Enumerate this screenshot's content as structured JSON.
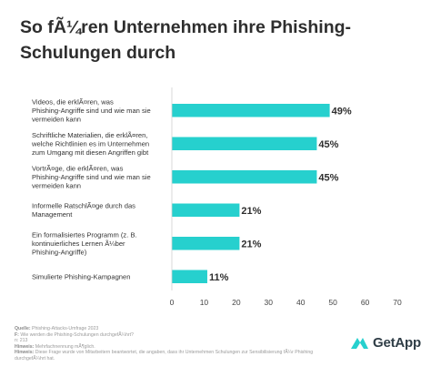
{
  "title": "So fÃ¼ren Unternehmen ihre Phishing-Schulungen durch",
  "chart_data": {
    "type": "bar",
    "orientation": "horizontal",
    "categories": [
      [
        "Videos, die erklÃ¤ren, was",
        "Phishing-Angriffe sind und wie man sie",
        "vermeiden kann"
      ],
      [
        "Schriftliche Materialien, die erklÃ¤ren,",
        "welche Richtlinien es im Unternehmen",
        "zum Umgang mit diesen Angriffen gibt"
      ],
      [
        "VortrÃ¤ge, die erklÃ¤ren, was",
        "Phishing-Angriffe sind und wie man sie",
        "vermeiden kann"
      ],
      [
        "Informelle RatschlÃ¤ge durch das",
        "Management"
      ],
      [
        "Ein formalisiertes Programm (z. B.",
        "kontinuierliches Lernen Ã¼ber",
        "Phishing-Angriffe)"
      ],
      [
        "Simulierte Phishing-Kampagnen"
      ]
    ],
    "values": [
      49,
      45,
      45,
      21,
      21,
      11
    ],
    "value_labels": [
      "49%",
      "45%",
      "45%",
      "21%",
      "21%",
      "11%"
    ],
    "xlim": [
      0,
      70
    ],
    "xticks": [
      0,
      10,
      20,
      30,
      40,
      50,
      60,
      70
    ],
    "grid": false,
    "bar_color": "#26d0ce"
  },
  "footer": {
    "source_label": "Quelle:",
    "source_text": "Phishing-Attacks-Umfrage 2023",
    "question_label": "F:",
    "question_text": "Wie werden die Phishing-Schulungen durchgefÃ¼hrt?",
    "n_text": "n: 213",
    "note1_label": "Hinweis:",
    "note1_text": "Mehrfachnennung mÃ¶glich.",
    "note2_label": "Hinweis:",
    "note2_text": "Diese Frage wurde von Mitarbeitern beantwortet, die angaben, dass ihr Unternehmen Schulungen zur Sensibilisierung fÃ¼r Phishing durchgefÃ¼hrt hat."
  },
  "logo": {
    "text": "GetApp",
    "mark_color": "#26d0ce"
  }
}
